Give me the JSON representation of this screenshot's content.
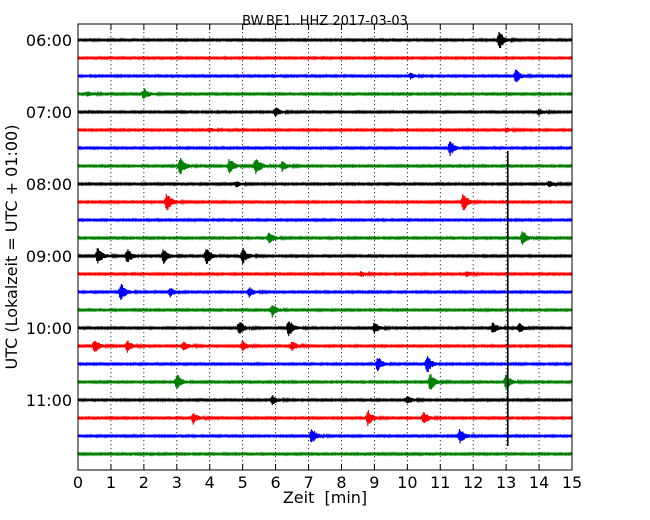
{
  "chart_data": {
    "type": "line",
    "title": "BW.BE1..HHZ 2017-03-03",
    "xlabel": "Zeit  [min]",
    "ylabel": "UTC (Lokalzeit = UTC + 01:00)",
    "xlim": [
      0,
      15
    ],
    "x_ticks": [
      "0",
      "1",
      "2",
      "3",
      "4",
      "5",
      "6",
      "7",
      "8",
      "9",
      "10",
      "11",
      "12",
      "13",
      "14",
      "15"
    ],
    "y_ticks": [
      "06:00",
      "07:00",
      "08:00",
      "09:00",
      "10:00",
      "11:00"
    ],
    "grid": "vertical-dotted",
    "trace_colors": [
      "#000000",
      "#ff0000",
      "#0000ff",
      "#008000"
    ],
    "traces": [
      {
        "start": "06:00",
        "events": [
          [
            12.8,
            1.0
          ]
        ]
      },
      {
        "start": "06:15",
        "events": []
      },
      {
        "start": "06:30",
        "events": [
          [
            13.3,
            0.7
          ],
          [
            10.1,
            0.3
          ]
        ]
      },
      {
        "start": "06:45",
        "events": [
          [
            2.0,
            0.6
          ],
          [
            0.3,
            0.3
          ]
        ]
      },
      {
        "start": "07:00",
        "events": [
          [
            6.0,
            0.5
          ],
          [
            14.0,
            0.3
          ]
        ]
      },
      {
        "start": "07:15",
        "events": [
          [
            4.0,
            0.2
          ],
          [
            13.0,
            0.25
          ]
        ]
      },
      {
        "start": "07:30",
        "events": [
          [
            11.3,
            0.8
          ]
        ]
      },
      {
        "start": "07:45",
        "events": [
          [
            3.1,
            1.0
          ],
          [
            4.6,
            0.8
          ],
          [
            5.4,
            1.0
          ],
          [
            6.2,
            0.5
          ]
        ]
      },
      {
        "start": "08:00",
        "events": [
          [
            4.8,
            0.3
          ],
          [
            14.3,
            0.3
          ]
        ]
      },
      {
        "start": "08:15",
        "events": [
          [
            2.7,
            1.0
          ],
          [
            11.7,
            1.0
          ]
        ]
      },
      {
        "start": "08:30",
        "events": []
      },
      {
        "start": "08:45",
        "events": [
          [
            5.8,
            0.6
          ],
          [
            13.5,
            0.8
          ]
        ]
      },
      {
        "start": "09:00",
        "events": [
          [
            0.6,
            0.9
          ],
          [
            1.5,
            0.8
          ],
          [
            2.6,
            0.8
          ],
          [
            3.9,
            1.0
          ],
          [
            5.0,
            0.9
          ]
        ]
      },
      {
        "start": "09:15",
        "events": [
          [
            8.6,
            0.3
          ],
          [
            11.8,
            0.3
          ]
        ]
      },
      {
        "start": "09:30",
        "events": [
          [
            1.3,
            1.0
          ],
          [
            2.8,
            0.5
          ],
          [
            5.2,
            0.5
          ]
        ]
      },
      {
        "start": "09:45",
        "events": [
          [
            5.9,
            0.7
          ]
        ]
      },
      {
        "start": "10:00",
        "events": [
          [
            4.9,
            0.8
          ],
          [
            6.4,
            1.0
          ],
          [
            9.0,
            0.6
          ],
          [
            12.6,
            0.6
          ],
          [
            13.4,
            0.5
          ]
        ]
      },
      {
        "start": "10:15",
        "events": [
          [
            0.5,
            0.8
          ],
          [
            1.5,
            0.6
          ],
          [
            3.2,
            0.5
          ],
          [
            5.0,
            0.5
          ],
          [
            6.5,
            0.5
          ]
        ]
      },
      {
        "start": "10:30",
        "events": [
          [
            9.1,
            0.8
          ],
          [
            10.6,
            1.0
          ]
        ]
      },
      {
        "start": "10:45",
        "events": [
          [
            3.0,
            0.9
          ],
          [
            10.7,
            1.0
          ],
          [
            13.0,
            0.8
          ]
        ]
      },
      {
        "start": "11:00",
        "events": [
          [
            5.9,
            0.5
          ],
          [
            10.0,
            0.4
          ]
        ]
      },
      {
        "start": "11:15",
        "events": [
          [
            3.5,
            0.6
          ],
          [
            8.8,
            0.9
          ],
          [
            10.5,
            0.7
          ]
        ]
      },
      {
        "start": "11:30",
        "events": [
          [
            7.1,
            0.9
          ],
          [
            11.6,
            0.8
          ]
        ]
      },
      {
        "start": "11:45",
        "events": []
      }
    ],
    "marker_line": {
      "x": 13.05,
      "from": "07:45",
      "to": "11:30"
    }
  }
}
